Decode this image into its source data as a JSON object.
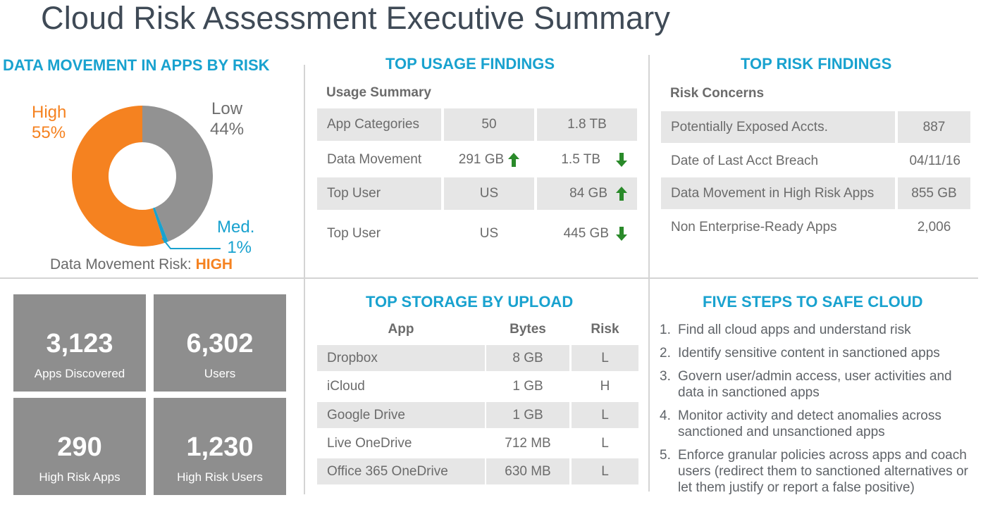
{
  "title": "Cloud Risk Assessment Executive Summary",
  "colors": {
    "accent": "#19a2cf",
    "high": "#f58220",
    "low": "#929292",
    "med": "#19a2cf",
    "arrow": "#2a8a2a",
    "tile": "#8e8e8e"
  },
  "data_movement": {
    "title": "DATA MOVEMENT IN APPS BY RISK",
    "high_label": "High",
    "high_pct": "55%",
    "low_label": "Low",
    "low_pct": "44%",
    "med_label": "Med.",
    "med_pct": "1%",
    "risk_label": "Data Movement Risk:",
    "risk_value": "HIGH"
  },
  "chart_data": {
    "type": "pie",
    "title": "DATA MOVEMENT IN APPS BY RISK",
    "categories": [
      "Low",
      "Med.",
      "High"
    ],
    "values": [
      44,
      1,
      55
    ],
    "colors": [
      "#929292",
      "#19a2cf",
      "#f58220"
    ],
    "donut": true
  },
  "usage": {
    "title": "TOP USAGE FINDINGS",
    "subtitle": "Usage Summary",
    "rows": [
      {
        "label": "App Categories",
        "v1": "50",
        "v2": "1.8 TB",
        "a1": "",
        "a2": ""
      },
      {
        "label": "Data Movement",
        "v1": "291 GB",
        "v2": "1.5 TB",
        "a1": "up",
        "a2": "down"
      },
      {
        "label": "Top User",
        "v1": "US",
        "v2": "84 GB",
        "a1": "",
        "a2": "up"
      },
      {
        "label": "Top User",
        "v1": "US",
        "v2": "445 GB",
        "a1": "",
        "a2": "down"
      }
    ]
  },
  "risk": {
    "title": "TOP RISK FINDINGS",
    "subtitle": "Risk Concerns",
    "rows": [
      {
        "label": "Potentially Exposed Accts.",
        "value": "887"
      },
      {
        "label": "Date of Last Acct Breach",
        "value": "04/11/16"
      },
      {
        "label": "Data Movement in High Risk Apps",
        "value": "855 GB"
      },
      {
        "label": "Non Enterprise-Ready Apps",
        "value": "2,006"
      }
    ]
  },
  "tiles": [
    {
      "num": "3,123",
      "label": "Apps Discovered"
    },
    {
      "num": "6,302",
      "label": "Users"
    },
    {
      "num": "290",
      "label": "High Risk Apps"
    },
    {
      "num": "1,230",
      "label": "High Risk Users"
    }
  ],
  "storage": {
    "title": "TOP STORAGE BY UPLOAD",
    "headers": {
      "app": "App",
      "bytes": "Bytes",
      "risk": "Risk"
    },
    "rows": [
      {
        "app": "Dropbox",
        "bytes": "8 GB",
        "risk": "L"
      },
      {
        "app": "iCloud",
        "bytes": "1 GB",
        "risk": "H"
      },
      {
        "app": "Google Drive",
        "bytes": "1 GB",
        "risk": "L"
      },
      {
        "app": "Live OneDrive",
        "bytes": "712 MB",
        "risk": "L"
      },
      {
        "app": "Office 365 OneDrive",
        "bytes": "630 MB",
        "risk": "L"
      }
    ]
  },
  "steps": {
    "title": "FIVE STEPS TO SAFE CLOUD",
    "items": [
      {
        "n": "1.",
        "lines": [
          "Find all cloud apps and understand risk"
        ]
      },
      {
        "n": "2.",
        "lines": [
          "Identify sensitive content in sanctioned apps"
        ]
      },
      {
        "n": "3.",
        "lines": [
          "Govern user/admin access, user activities and",
          "data in sanctioned apps"
        ]
      },
      {
        "n": "4.",
        "lines": [
          "Monitor activity and detect anomalies across",
          "sanctioned and unsanctioned apps"
        ]
      },
      {
        "n": "5.",
        "lines": [
          "Enforce granular policies across apps and coach",
          "users (redirect them to sanctioned alternatives or",
          "let them justify or report a false positive)"
        ]
      }
    ]
  }
}
